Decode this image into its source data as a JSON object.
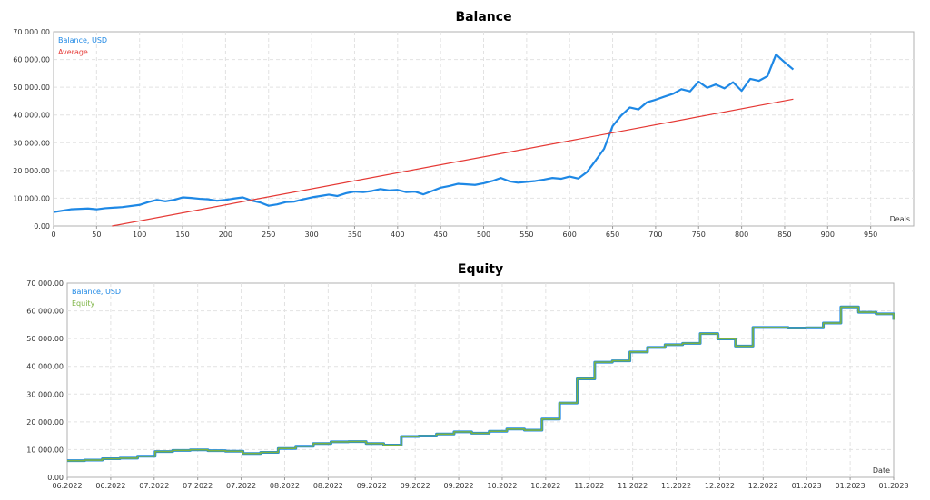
{
  "chart_data": [
    {
      "type": "line",
      "title": "Balance",
      "xlabel": "Deals",
      "ylabel": "",
      "xlim": [
        0,
        1000
      ],
      "ylim": [
        0,
        70000
      ],
      "x_ticks": [
        "0",
        "50",
        "100",
        "150",
        "200",
        "250",
        "300",
        "350",
        "400",
        "450",
        "500",
        "550",
        "600",
        "650",
        "700",
        "750",
        "800",
        "850",
        "900",
        "950"
      ],
      "x_tick_values": [
        0,
        50,
        100,
        150,
        200,
        250,
        300,
        350,
        400,
        450,
        500,
        550,
        600,
        650,
        700,
        750,
        800,
        850,
        900,
        950
      ],
      "y_ticks": [
        "0.00",
        "10 000.00",
        "20 000.00",
        "30 000.00",
        "40 000.00",
        "50 000.00",
        "60 000.00",
        "70 000.00"
      ],
      "y_tick_values": [
        0,
        10000,
        20000,
        30000,
        40000,
        50000,
        60000,
        70000
      ],
      "grid": true,
      "legend": "top-left",
      "series": [
        {
          "name": "Balance, USD",
          "color": "#1e88e5",
          "x": [
            0,
            10,
            20,
            40,
            50,
            60,
            80,
            100,
            110,
            120,
            130,
            140,
            150,
            160,
            170,
            180,
            190,
            200,
            210,
            220,
            230,
            240,
            250,
            260,
            270,
            280,
            290,
            300,
            310,
            320,
            330,
            340,
            350,
            360,
            370,
            380,
            390,
            400,
            410,
            420,
            430,
            440,
            450,
            460,
            470,
            480,
            490,
            500,
            510,
            520,
            530,
            540,
            550,
            560,
            570,
            580,
            590,
            600,
            610,
            620,
            630,
            640,
            650,
            660,
            670,
            680,
            690,
            700,
            710,
            720,
            730,
            740,
            750,
            760,
            770,
            780,
            790,
            800,
            810,
            820,
            830,
            840,
            850,
            860
          ],
          "y": [
            5000,
            5500,
            6000,
            6300,
            6000,
            6400,
            6800,
            7600,
            8600,
            9400,
            8900,
            9400,
            10300,
            10100,
            9800,
            9600,
            9100,
            9400,
            9900,
            10300,
            9200,
            8500,
            7300,
            7800,
            8600,
            8800,
            9600,
            10300,
            10800,
            11300,
            10800,
            11800,
            12400,
            12200,
            12600,
            13300,
            12800,
            13000,
            12200,
            12400,
            11400,
            12600,
            13800,
            14400,
            15200,
            15000,
            14800,
            15400,
            16200,
            17300,
            16100,
            15600,
            15900,
            16200,
            16700,
            17300,
            17000,
            17800,
            17100,
            19400,
            23500,
            27800,
            36000,
            39800,
            42700,
            42000,
            44600,
            45500,
            46600,
            47600,
            49300,
            48500,
            52000,
            49800,
            51000,
            49600,
            51800,
            48700,
            53000,
            52300,
            54000,
            61800,
            59000,
            56400
          ]
        },
        {
          "name": "Average",
          "color": "#e53935",
          "x": [
            68,
            860
          ],
          "y": [
            0,
            45700
          ]
        }
      ]
    },
    {
      "type": "line",
      "title": "Equity",
      "xlabel": "Date",
      "ylabel": "",
      "ylim": [
        0,
        70000
      ],
      "x_ticks": [
        "06.2022",
        "06.2022",
        "07.2022",
        "07.2022",
        "07.2022",
        "08.2022",
        "08.2022",
        "09.2022",
        "09.2022",
        "09.2022",
        "10.2022",
        "10.2022",
        "11.2022",
        "11.2022",
        "11.2022",
        "12.2022",
        "12.2022",
        "01.2023",
        "01.2023",
        "01.2023"
      ],
      "y_ticks": [
        "0.00",
        "10 000.00",
        "20 000.00",
        "30 000.00",
        "40 000.00",
        "50 000.00",
        "60 000.00",
        "70 000.00"
      ],
      "y_tick_values": [
        0,
        10000,
        20000,
        30000,
        40000,
        50000,
        60000,
        70000
      ],
      "grid": true,
      "legend": "top-left",
      "series": [
        {
          "name": "Balance, USD",
          "color": "#1e88e5",
          "y": [
            6000,
            6200,
            6700,
            6900,
            7600,
            9300,
            9700,
            9900,
            9600,
            9400,
            8600,
            9000,
            10400,
            11200,
            12200,
            12800,
            12900,
            12200,
            11600,
            14700,
            14900,
            15600,
            16400,
            15900,
            16600,
            17400,
            17000,
            21000,
            26800,
            35500,
            41500,
            42000,
            45200,
            46800,
            47800,
            48300,
            51800,
            49900,
            47300,
            54000,
            54000,
            53800,
            53900,
            55600,
            61400,
            59500,
            58900,
            56800
          ]
        },
        {
          "name": "Equity",
          "color": "#7cb342",
          "y": [
            6000,
            6200,
            6700,
            6900,
            7600,
            9300,
            9700,
            9900,
            9600,
            9400,
            8600,
            9000,
            10400,
            11200,
            12200,
            12800,
            12900,
            12200,
            11600,
            14700,
            14900,
            15600,
            16400,
            15900,
            16600,
            17400,
            17000,
            21000,
            26800,
            35500,
            41500,
            42000,
            45200,
            46800,
            47800,
            48300,
            51800,
            49900,
            47300,
            54000,
            54000,
            53800,
            53900,
            55600,
            61400,
            59500,
            58900,
            56800
          ]
        }
      ]
    }
  ]
}
